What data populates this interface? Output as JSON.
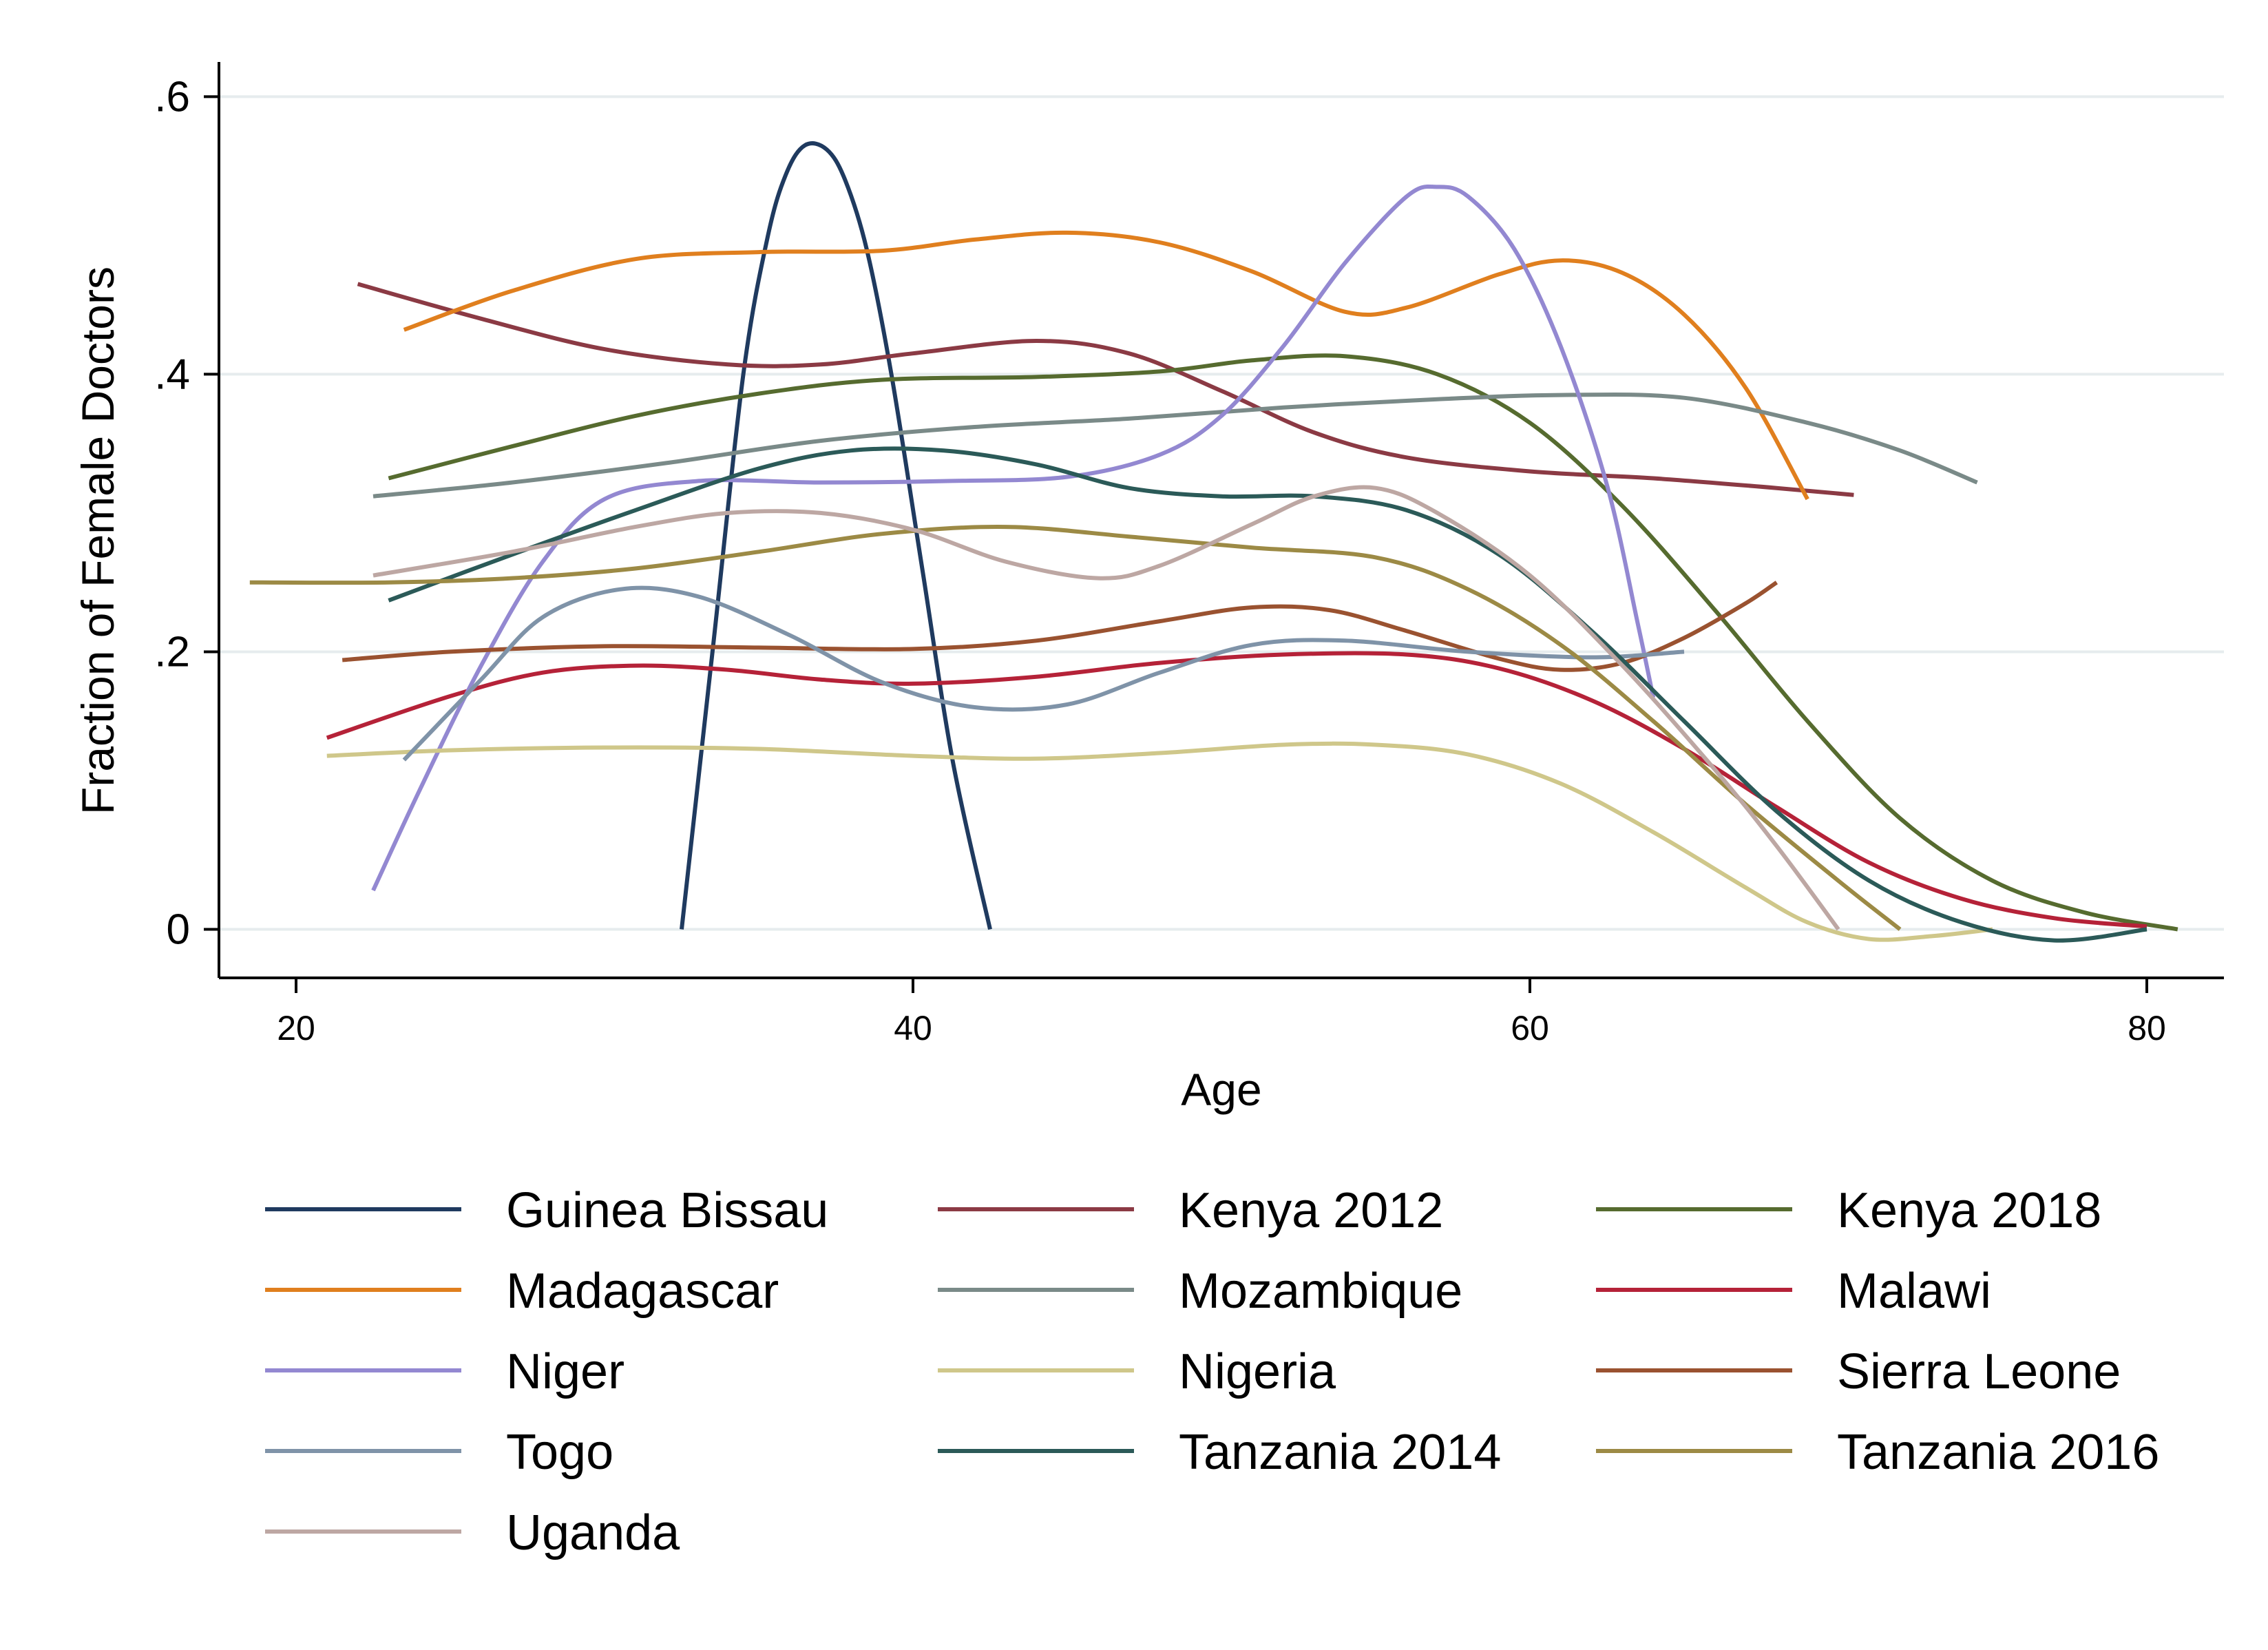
{
  "chart_data": {
    "type": "line",
    "xlabel": "Age",
    "ylabel": "Fraction of Female Doctors",
    "xlim": [
      17.5,
      82.5
    ],
    "ylim": [
      -0.035,
      0.625
    ],
    "xticks": [
      {
        "value": 20,
        "label": "20"
      },
      {
        "value": 40,
        "label": "40"
      },
      {
        "value": 60,
        "label": "60"
      },
      {
        "value": 80,
        "label": "80"
      }
    ],
    "yticks": [
      {
        "value": 0,
        "label": "0"
      },
      {
        "value": 0.2,
        "label": ".2"
      },
      {
        "value": 0.4,
        "label": ".4"
      },
      {
        "value": 0.6,
        "label": ".6"
      }
    ],
    "grid": true,
    "legend_position": "bottom",
    "series": [
      {
        "name": "Guinea Bissau",
        "color": "#1f3a5f",
        "points": [
          [
            32.5,
            0.0
          ],
          [
            33.5,
            0.2
          ],
          [
            34.5,
            0.4
          ],
          [
            35.3,
            0.5
          ],
          [
            35.9,
            0.545
          ],
          [
            36.5,
            0.565
          ],
          [
            37.2,
            0.562
          ],
          [
            37.8,
            0.54
          ],
          [
            38.5,
            0.49
          ],
          [
            39.3,
            0.4
          ],
          [
            40.3,
            0.26
          ],
          [
            41.3,
            0.12
          ],
          [
            42.5,
            0.0
          ]
        ]
      },
      {
        "name": "Kenya 2012",
        "color": "#8b3a44",
        "points": [
          [
            22,
            0.465
          ],
          [
            26,
            0.44
          ],
          [
            30,
            0.418
          ],
          [
            34,
            0.407
          ],
          [
            37,
            0.407
          ],
          [
            40,
            0.415
          ],
          [
            44,
            0.424
          ],
          [
            47,
            0.415
          ],
          [
            50,
            0.388
          ],
          [
            53,
            0.358
          ],
          [
            56,
            0.34
          ],
          [
            60,
            0.33
          ],
          [
            64,
            0.325
          ],
          [
            68,
            0.318
          ],
          [
            70.5,
            0.313
          ]
        ]
      },
      {
        "name": "Kenya 2018",
        "color": "#566b2f",
        "points": [
          [
            23,
            0.325
          ],
          [
            27,
            0.348
          ],
          [
            31,
            0.37
          ],
          [
            35,
            0.386
          ],
          [
            39,
            0.396
          ],
          [
            44,
            0.398
          ],
          [
            48,
            0.402
          ],
          [
            51,
            0.41
          ],
          [
            54,
            0.413
          ],
          [
            57,
            0.4
          ],
          [
            60,
            0.365
          ],
          [
            63,
            0.305
          ],
          [
            66,
            0.23
          ],
          [
            69,
            0.15
          ],
          [
            72,
            0.08
          ],
          [
            75,
            0.035
          ],
          [
            78,
            0.012
          ],
          [
            81,
            0.0
          ]
        ]
      },
      {
        "name": "Madagascar",
        "color": "#e07f1e",
        "points": [
          [
            23.5,
            0.432
          ],
          [
            27,
            0.46
          ],
          [
            31,
            0.483
          ],
          [
            35,
            0.488
          ],
          [
            39,
            0.489
          ],
          [
            42,
            0.497
          ],
          [
            45,
            0.502
          ],
          [
            48,
            0.495
          ],
          [
            51,
            0.474
          ],
          [
            54,
            0.445
          ],
          [
            56,
            0.448
          ],
          [
            59,
            0.472
          ],
          [
            61,
            0.482
          ],
          [
            63,
            0.473
          ],
          [
            65,
            0.443
          ],
          [
            67,
            0.39
          ],
          [
            69,
            0.31
          ]
        ]
      },
      {
        "name": "Mozambique",
        "color": "#7a8a88",
        "points": [
          [
            22.5,
            0.312
          ],
          [
            27,
            0.322
          ],
          [
            32,
            0.336
          ],
          [
            37,
            0.352
          ],
          [
            42,
            0.362
          ],
          [
            47,
            0.368
          ],
          [
            52,
            0.376
          ],
          [
            57,
            0.382
          ],
          [
            61,
            0.385
          ],
          [
            65,
            0.383
          ],
          [
            69,
            0.365
          ],
          [
            72,
            0.345
          ],
          [
            74.5,
            0.322
          ]
        ]
      },
      {
        "name": "Malawi",
        "color": "#b52238",
        "points": [
          [
            21,
            0.138
          ],
          [
            25,
            0.168
          ],
          [
            28,
            0.185
          ],
          [
            31,
            0.19
          ],
          [
            34,
            0.187
          ],
          [
            37,
            0.18
          ],
          [
            40,
            0.177
          ],
          [
            44,
            0.182
          ],
          [
            48,
            0.192
          ],
          [
            52,
            0.198
          ],
          [
            56,
            0.198
          ],
          [
            59,
            0.188
          ],
          [
            62,
            0.165
          ],
          [
            65,
            0.13
          ],
          [
            68,
            0.088
          ],
          [
            71,
            0.048
          ],
          [
            74,
            0.022
          ],
          [
            77,
            0.008
          ],
          [
            80,
            0.002
          ]
        ]
      },
      {
        "name": "Niger",
        "color": "#9388d1",
        "points": [
          [
            22.5,
            0.028
          ],
          [
            24,
            0.1
          ],
          [
            26,
            0.19
          ],
          [
            28,
            0.265
          ],
          [
            30,
            0.31
          ],
          [
            33,
            0.323
          ],
          [
            37,
            0.322
          ],
          [
            41,
            0.323
          ],
          [
            45,
            0.326
          ],
          [
            48,
            0.342
          ],
          [
            50,
            0.37
          ],
          [
            52,
            0.42
          ],
          [
            54,
            0.48
          ],
          [
            56,
            0.528
          ],
          [
            57,
            0.535
          ],
          [
            58,
            0.528
          ],
          [
            59.5,
            0.49
          ],
          [
            61,
            0.42
          ],
          [
            62.5,
            0.32
          ],
          [
            63.5,
            0.22
          ],
          [
            64,
            0.167
          ]
        ]
      },
      {
        "name": "Nigeria",
        "color": "#cfc78a",
        "points": [
          [
            21,
            0.125
          ],
          [
            25,
            0.129
          ],
          [
            30,
            0.131
          ],
          [
            35,
            0.13
          ],
          [
            40,
            0.125
          ],
          [
            44,
            0.123
          ],
          [
            48,
            0.127
          ],
          [
            52,
            0.133
          ],
          [
            55,
            0.133
          ],
          [
            58,
            0.126
          ],
          [
            61,
            0.105
          ],
          [
            64,
            0.07
          ],
          [
            67,
            0.03
          ],
          [
            69,
            0.005
          ],
          [
            71,
            -0.007
          ],
          [
            73,
            -0.005
          ],
          [
            75,
            0.0
          ]
        ]
      },
      {
        "name": "Sierra Leone",
        "color": "#9a5230",
        "points": [
          [
            21.5,
            0.194
          ],
          [
            25,
            0.2
          ],
          [
            30,
            0.204
          ],
          [
            35,
            0.203
          ],
          [
            40,
            0.202
          ],
          [
            44,
            0.208
          ],
          [
            48,
            0.222
          ],
          [
            51,
            0.232
          ],
          [
            53.5,
            0.23
          ],
          [
            56,
            0.215
          ],
          [
            59,
            0.195
          ],
          [
            61,
            0.187
          ],
          [
            63,
            0.192
          ],
          [
            65,
            0.21
          ],
          [
            67,
            0.235
          ],
          [
            68,
            0.25
          ]
        ]
      },
      {
        "name": "Togo",
        "color": "#7f93a8",
        "points": [
          [
            23.5,
            0.122
          ],
          [
            26,
            0.18
          ],
          [
            28,
            0.225
          ],
          [
            30.5,
            0.245
          ],
          [
            33,
            0.24
          ],
          [
            36,
            0.212
          ],
          [
            39,
            0.178
          ],
          [
            42,
            0.16
          ],
          [
            45,
            0.162
          ],
          [
            48,
            0.185
          ],
          [
            51,
            0.205
          ],
          [
            54,
            0.208
          ],
          [
            58,
            0.2
          ],
          [
            62,
            0.196
          ],
          [
            65,
            0.2
          ]
        ]
      },
      {
        "name": "Tanzania 2014",
        "color": "#2b5a58",
        "points": [
          [
            23,
            0.237
          ],
          [
            27,
            0.27
          ],
          [
            31,
            0.302
          ],
          [
            35,
            0.332
          ],
          [
            38,
            0.345
          ],
          [
            41,
            0.345
          ],
          [
            44,
            0.335
          ],
          [
            47,
            0.318
          ],
          [
            50,
            0.312
          ],
          [
            53,
            0.312
          ],
          [
            56,
            0.302
          ],
          [
            59,
            0.27
          ],
          [
            62,
            0.215
          ],
          [
            65,
            0.15
          ],
          [
            68,
            0.085
          ],
          [
            71,
            0.035
          ],
          [
            74,
            0.005
          ],
          [
            77,
            -0.008
          ],
          [
            80,
            0.0
          ]
        ]
      },
      {
        "name": "Tanzania 2016",
        "color": "#9c8a45",
        "points": [
          [
            18.5,
            0.25
          ],
          [
            23,
            0.25
          ],
          [
            27,
            0.253
          ],
          [
            31,
            0.26
          ],
          [
            35,
            0.272
          ],
          [
            39,
            0.285
          ],
          [
            43,
            0.29
          ],
          [
            47,
            0.283
          ],
          [
            51,
            0.275
          ],
          [
            55,
            0.268
          ],
          [
            58,
            0.245
          ],
          [
            61,
            0.205
          ],
          [
            64,
            0.15
          ],
          [
            67,
            0.09
          ],
          [
            70,
            0.035
          ],
          [
            72,
            0.0
          ]
        ]
      },
      {
        "name": "Uganda",
        "color": "#bda7a3",
        "points": [
          [
            22.5,
            0.255
          ],
          [
            27,
            0.272
          ],
          [
            31,
            0.29
          ],
          [
            34,
            0.3
          ],
          [
            37,
            0.3
          ],
          [
            40,
            0.288
          ],
          [
            43,
            0.265
          ],
          [
            46,
            0.253
          ],
          [
            48,
            0.262
          ],
          [
            51,
            0.292
          ],
          [
            53,
            0.312
          ],
          [
            55,
            0.318
          ],
          [
            57,
            0.3
          ],
          [
            60,
            0.255
          ],
          [
            63,
            0.19
          ],
          [
            66,
            0.115
          ],
          [
            68,
            0.06
          ],
          [
            70,
            0.0
          ]
        ]
      }
    ]
  },
  "legend_layout": [
    "Guinea Bissau",
    "Kenya 2012",
    "Kenya 2018",
    "Madagascar",
    "Mozambique",
    "Malawi",
    "Niger",
    "Nigeria",
    "Sierra Leone",
    "Togo",
    "Tanzania 2014",
    "Tanzania 2016",
    "Uganda"
  ]
}
